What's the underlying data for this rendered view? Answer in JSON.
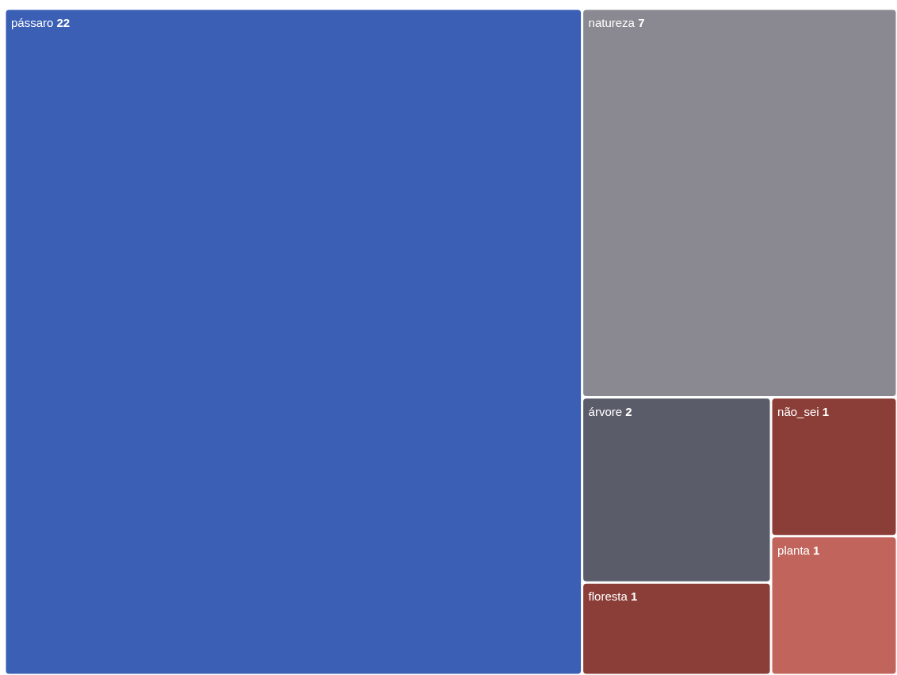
{
  "chart_data": {
    "type": "other",
    "categories": [
      "pássaro",
      "natureza",
      "árvore",
      "floresta",
      "não_sei",
      "planta"
    ],
    "values": [
      22,
      7,
      2,
      1,
      1,
      1
    ],
    "colors": [
      "#3a5fb5",
      "#8a8991",
      "#5b5c6a",
      "#8b3d37",
      "#8b3d37",
      "#c1655c"
    ],
    "data_labels": true,
    "legend": false
  }
}
